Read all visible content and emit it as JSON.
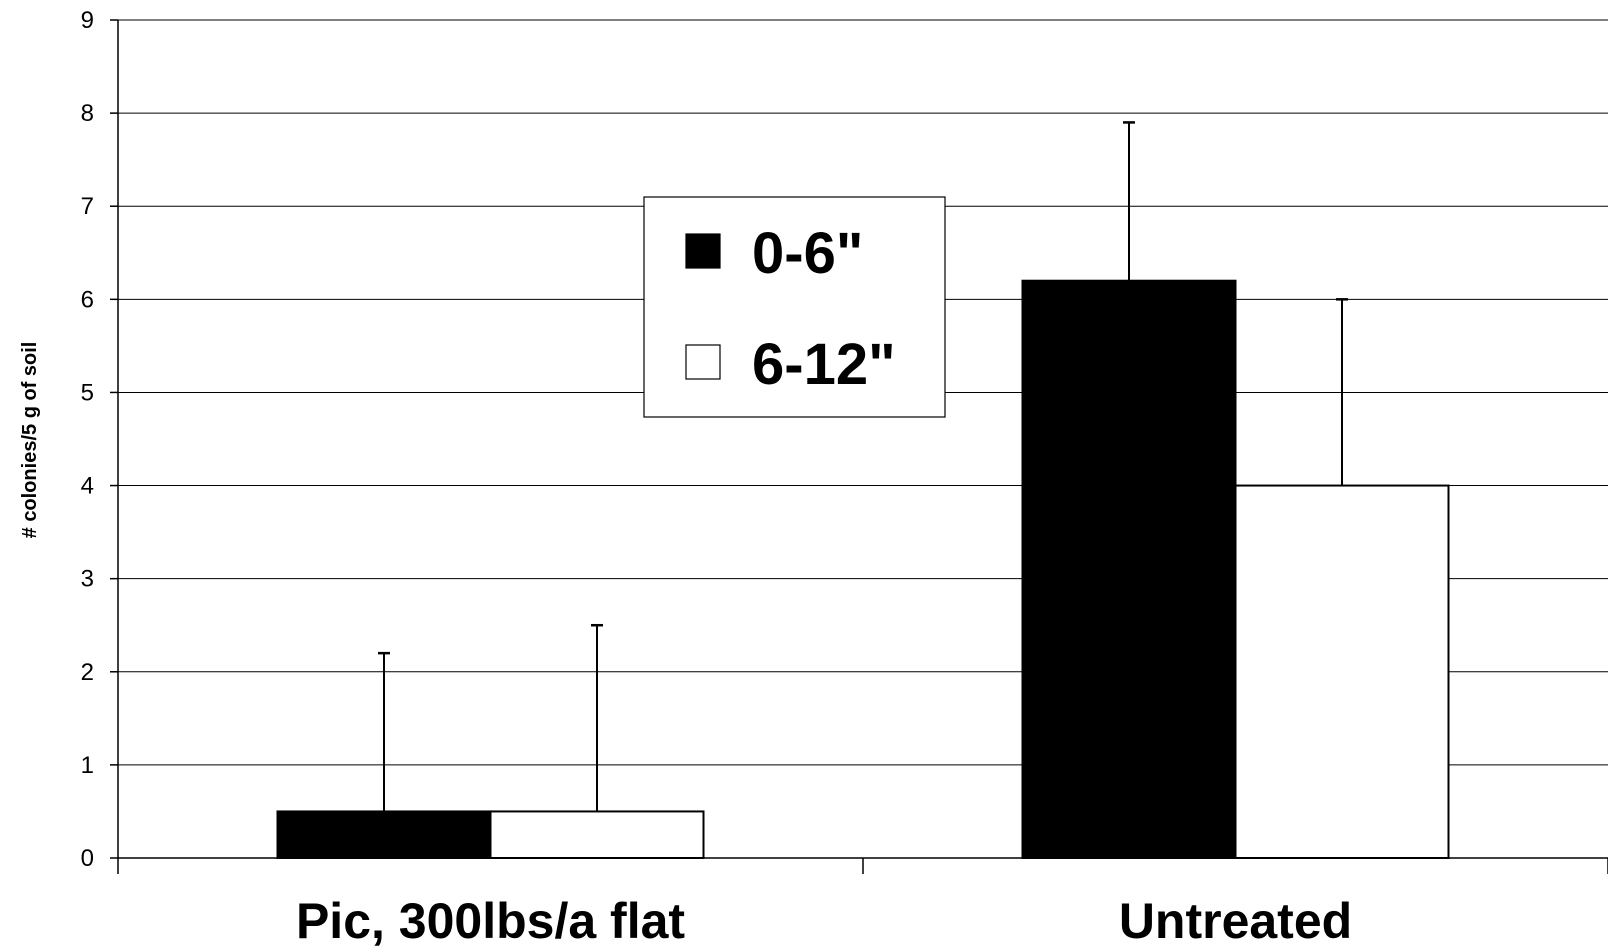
{
  "chart_data": {
    "type": "bar",
    "title": "",
    "xlabel": "",
    "ylabel": "# colonies/5 g of soil",
    "ylim": [
      0,
      9
    ],
    "yticks": [
      "0",
      "1",
      "2",
      "3",
      "4",
      "5",
      "6",
      "7",
      "8",
      "9"
    ],
    "categories": [
      "Pic, 300lbs/a flat",
      "Untreated"
    ],
    "series": [
      {
        "name": "0-6\"",
        "color": "#000000",
        "values": [
          0.5,
          6.2
        ],
        "error_upper": [
          2.2,
          7.9
        ]
      },
      {
        "name": "6-12\"",
        "color": "#ffffff",
        "values": [
          0.5,
          4.0
        ],
        "error_upper": [
          2.5,
          6.0
        ]
      }
    ],
    "grid": true,
    "legend_position": "upper-center"
  }
}
